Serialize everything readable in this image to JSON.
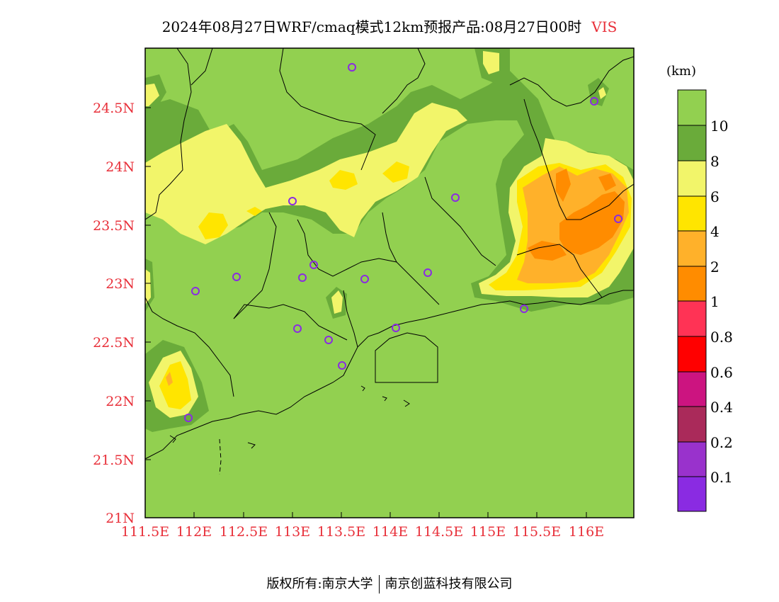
{
  "title": {
    "main": "2024年08月27日WRF/cmaq模式12km预报产品:08月27日00时",
    "variable": "VIS"
  },
  "map": {
    "lat_ticks": [
      "24.5N",
      "24N",
      "23.5N",
      "23N",
      "22.5N",
      "22N",
      "21.5N",
      "21N"
    ],
    "lon_ticks": [
      "111.5E",
      "112E",
      "112.5E",
      "113E",
      "113.5E",
      "114E",
      "114.5E",
      "115E",
      "115.5E",
      "116E"
    ],
    "station_marker": "circle-station-icon"
  },
  "legend": {
    "units": "(km)",
    "labels": [
      "10",
      "8",
      "6",
      "4",
      "2",
      "1",
      "0.8",
      "0.6",
      "0.4",
      "0.2",
      "0.1"
    ],
    "colors": [
      "#92d050",
      "#6aab3a",
      "#f2f56a",
      "#ffe500",
      "#ffb12a",
      "#ff8c00",
      "#ff3355",
      "#ff0000",
      "#cc1480",
      "#aa2a5a",
      "#9932cc",
      "#8a2be2"
    ]
  },
  "footer": {
    "left": "版权所有:南京大学",
    "right": "南京创蓝科技有限公司"
  }
}
